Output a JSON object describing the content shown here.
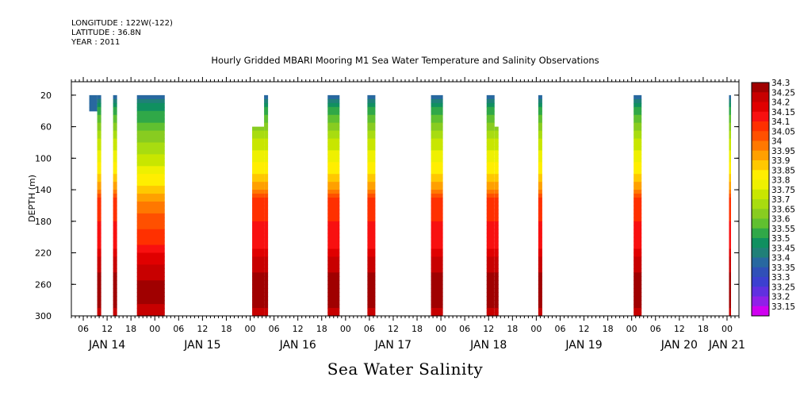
{
  "meta": {
    "longitude": "LONGITUDE : 122W(-122)",
    "latitude": "LATITUDE : 36.8N",
    "year": "YEAR : 2011"
  },
  "chart_data": {
    "type": "heatmap",
    "title": "Hourly Gridded MBARI Mooring M1 Sea Water Temperature and Salinity Observations",
    "caption": "Sea Water Salinity",
    "ylabel": "DEPTH (m)",
    "xlabel": "",
    "x_unit": "hours since JAN 14 00:00",
    "xlim": [
      3,
      171
    ],
    "ylim": [
      300,
      0
    ],
    "y_ticks": [
      20,
      60,
      100,
      140,
      180,
      220,
      260,
      300
    ],
    "x_hour_labels": [
      "06",
      "12",
      "18",
      "00",
      "06",
      "12",
      "18",
      "00",
      "06",
      "12",
      "18",
      "00",
      "06",
      "12",
      "18",
      "00",
      "06",
      "12",
      "18",
      "00",
      "06",
      "12",
      "18",
      "00",
      "06",
      "12",
      "18",
      "00",
      "06",
      "12",
      "18",
      "00"
    ],
    "x_hour_values": [
      6,
      12,
      18,
      24,
      30,
      36,
      42,
      48,
      54,
      60,
      66,
      72,
      78,
      84,
      90,
      96,
      102,
      108,
      114,
      120,
      126,
      132,
      138,
      144,
      150,
      156,
      162,
      168
    ],
    "x_day_labels": [
      "JAN 14",
      "JAN 15",
      "JAN 16",
      "JAN 17",
      "JAN 18",
      "JAN 19",
      "JAN 20",
      "JAN 21"
    ],
    "x_day_values": [
      12,
      36,
      60,
      84,
      108,
      132,
      156,
      168
    ],
    "colorbar_levels": [
      "34.3",
      "34.25",
      "34.2",
      "34.15",
      "34.1",
      "34.05",
      "34",
      "33.95",
      "33.9",
      "33.85",
      "33.8",
      "33.75",
      "33.7",
      "33.65",
      "33.6",
      "33.55",
      "33.5",
      "33.45",
      "33.4",
      "33.35",
      "33.3",
      "33.25",
      "33.2",
      "33.15"
    ],
    "colorbar_colors": [
      "#a00000",
      "#c80000",
      "#e00000",
      "#f81010",
      "#ff3000",
      "#ff5000",
      "#ff7800",
      "#ffa000",
      "#ffc800",
      "#ffee00",
      "#eef000",
      "#c8e600",
      "#a8dc10",
      "#88cc20",
      "#60c030",
      "#30a848",
      "#109060",
      "#208078",
      "#2868a0",
      "#3050b8",
      "#3c40d0",
      "#6030e0",
      "#9020e8",
      "#d000f0"
    ],
    "observation_columns": [
      {
        "start": 7.5,
        "end": 9.5,
        "top": 20,
        "profile": "shallow"
      },
      {
        "start": 9.5,
        "end": 10.5,
        "top": 20,
        "profile": "normal"
      },
      {
        "start": 13.5,
        "end": 14.5,
        "top": 20,
        "profile": "normal"
      },
      {
        "start": 19.5,
        "end": 26.5,
        "top": 20,
        "profile": "deep"
      },
      {
        "start": 48.5,
        "end": 51.5,
        "top": 60,
        "profile": "normal"
      },
      {
        "start": 51.5,
        "end": 52.5,
        "top": 20,
        "profile": "normal"
      },
      {
        "start": 67.5,
        "end": 70.5,
        "top": 20,
        "profile": "normal"
      },
      {
        "start": 77.5,
        "end": 79.5,
        "top": 20,
        "profile": "normal"
      },
      {
        "start": 93.5,
        "end": 96.5,
        "top": 20,
        "profile": "normal"
      },
      {
        "start": 107.5,
        "end": 109.5,
        "top": 20,
        "profile": "normal"
      },
      {
        "start": 109.5,
        "end": 110.5,
        "top": 60,
        "profile": "normal"
      },
      {
        "start": 120.5,
        "end": 121.5,
        "top": 20,
        "profile": "normal"
      },
      {
        "start": 144.5,
        "end": 146.5,
        "top": 20,
        "profile": "normal"
      },
      {
        "start": 168.5,
        "end": 169,
        "top": 20,
        "profile": "normal"
      }
    ],
    "profiles": {
      "normal": [
        [
          20,
          33.375
        ],
        [
          30,
          33.475
        ],
        [
          40,
          33.525
        ],
        [
          50,
          33.575
        ],
        [
          60,
          33.625
        ],
        [
          70,
          33.675
        ],
        [
          80,
          33.725
        ],
        [
          95,
          33.775
        ],
        [
          110,
          33.825
        ],
        [
          125,
          33.875
        ],
        [
          135,
          33.925
        ],
        [
          145,
          34.025
        ],
        [
          155,
          34.075
        ],
        [
          205,
          34.125
        ],
        [
          220,
          34.175
        ],
        [
          230,
          34.225
        ],
        [
          260,
          34.275
        ],
        [
          285,
          34.275
        ],
        [
          300,
          34.225
        ]
      ],
      "deep": [
        [
          20,
          33.375
        ],
        [
          32,
          33.475
        ],
        [
          45,
          33.525
        ],
        [
          60,
          33.575
        ],
        [
          72,
          33.625
        ],
        [
          85,
          33.675
        ],
        [
          100,
          33.725
        ],
        [
          115,
          33.775
        ],
        [
          128,
          33.825
        ],
        [
          140,
          33.875
        ],
        [
          150,
          33.925
        ],
        [
          160,
          33.975
        ],
        [
          180,
          34.025
        ],
        [
          200,
          34.075
        ],
        [
          215,
          34.125
        ],
        [
          228,
          34.175
        ],
        [
          238,
          34.225
        ],
        [
          270,
          34.275
        ],
        [
          300,
          34.225
        ]
      ],
      "shallow": [
        [
          20,
          33.375
        ],
        [
          40,
          33.375
        ]
      ]
    }
  }
}
